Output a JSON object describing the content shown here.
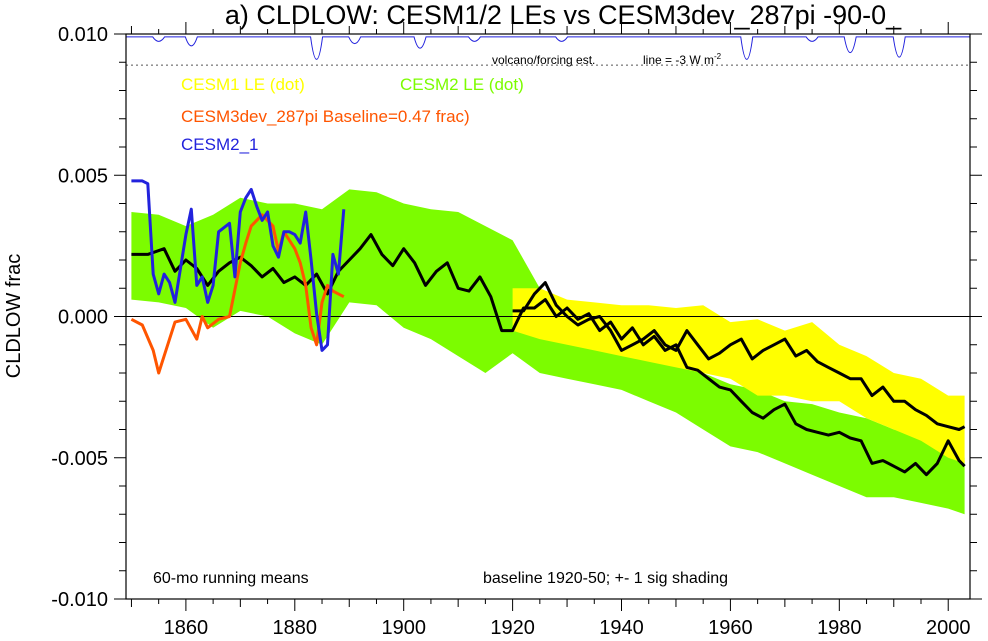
{
  "chart_data": {
    "type": "line",
    "title": "a) CLDLOW: CESM1/2 LEs vs CESM3dev_287pi -90-0_",
    "ylabel": "CLDLOW frac",
    "xlabel": "",
    "xlim": [
      1849,
      2004
    ],
    "ylim": [
      -0.01,
      0.01
    ],
    "x_ticks": [
      1860,
      1880,
      1900,
      1920,
      1940,
      1960,
      1980,
      2000
    ],
    "y_ticks": [
      0.01,
      0.005,
      0.0,
      -0.005,
      -0.01
    ],
    "y_tick_labels": [
      "0.010",
      "0.005",
      "0.000",
      "-0.005",
      "-0.010"
    ],
    "zero_line": 0,
    "legend": [
      {
        "label": "CESM1 LE (dot)",
        "color": "#ffff00"
      },
      {
        "label": "CESM2 LE (dot)",
        "color": "#7cfc00"
      },
      {
        "label": "CESM3dev_287pi Baseline=0.47 frac)",
        "color": "#ff5500"
      },
      {
        "label": "CESM2_1",
        "color": "#2222dd"
      }
    ],
    "annotations": {
      "volcano": "volcano/forcing est.",
      "line_scale": "line = -3 W m",
      "running_mean": "60-mo running means",
      "baseline": "baseline 1920-50; +- 1 sig shading"
    },
    "volcano_baseline_y": 0.0089,
    "volcano_top_y": 0.0099,
    "volcano_dips": [
      {
        "x": 1855,
        "depth": 0.0002
      },
      {
        "x": 1861,
        "depth": 0.0004
      },
      {
        "x": 1884,
        "depth": 0.001
      },
      {
        "x": 1891,
        "depth": 0.0003
      },
      {
        "x": 1903,
        "depth": 0.0005
      },
      {
        "x": 1913,
        "depth": 0.0002
      },
      {
        "x": 1929,
        "depth": 0.0002
      },
      {
        "x": 1963,
        "depth": 0.001
      },
      {
        "x": 1975,
        "depth": 0.0002
      },
      {
        "x": 1982,
        "depth": 0.0007
      },
      {
        "x": 1991,
        "depth": 0.0009
      }
    ],
    "series": [
      {
        "name": "CESM2 LE (dot)",
        "kind": "band",
        "color": "#7cfc00",
        "x": [
          1850,
          1855,
          1860,
          1865,
          1870,
          1875,
          1880,
          1885,
          1890,
          1895,
          1900,
          1905,
          1910,
          1915,
          1920,
          1925,
          1930,
          1935,
          1940,
          1945,
          1950,
          1955,
          1960,
          1965,
          1970,
          1975,
          1980,
          1985,
          1990,
          1995,
          2000,
          2003
        ],
        "upper": [
          0.0037,
          0.0036,
          0.0032,
          0.0036,
          0.0042,
          0.004,
          0.004,
          0.0038,
          0.0045,
          0.0044,
          0.004,
          0.0038,
          0.0037,
          0.0032,
          0.0027,
          0.001,
          0.0005,
          0.0,
          -0.0008,
          -0.0012,
          -0.0015,
          -0.002,
          -0.0024,
          -0.0026,
          -0.003,
          -0.0031,
          -0.0034,
          -0.0036,
          -0.004,
          -0.0042,
          -0.0046,
          -0.005
        ],
        "lower": [
          0.0006,
          0.0005,
          0.0003,
          -0.0004,
          0.0002,
          0.0,
          -0.0006,
          -0.001,
          0.0005,
          0.0004,
          -0.0004,
          -0.0008,
          -0.0014,
          -0.002,
          -0.0013,
          -0.002,
          -0.0022,
          -0.0024,
          -0.0026,
          -0.003,
          -0.0034,
          -0.004,
          -0.0046,
          -0.0048,
          -0.0052,
          -0.0056,
          -0.006,
          -0.0064,
          -0.0064,
          -0.0066,
          -0.0068,
          -0.007
        ]
      },
      {
        "name": "CESM1 LE (dot)",
        "kind": "band",
        "color": "#ffff00",
        "x": [
          1920,
          1925,
          1930,
          1935,
          1940,
          1945,
          1950,
          1955,
          1960,
          1965,
          1970,
          1975,
          1980,
          1985,
          1990,
          1995,
          2000,
          2003
        ],
        "upper": [
          0.001,
          0.001,
          0.0006,
          0.0005,
          0.0004,
          0.0004,
          0.0003,
          0.0004,
          -0.0002,
          -0.0001,
          -0.0005,
          -0.0002,
          -0.001,
          -0.0014,
          -0.002,
          -0.0022,
          -0.0028,
          -0.0028
        ],
        "lower": [
          -0.0005,
          -0.0008,
          -0.001,
          -0.0012,
          -0.0014,
          -0.0016,
          -0.0018,
          -0.002,
          -0.0022,
          -0.0028,
          -0.0028,
          -0.003,
          -0.003,
          -0.0036,
          -0.004,
          -0.0044,
          -0.005,
          -0.0052
        ]
      },
      {
        "name": "CESM2 LE (dot)",
        "kind": "mean",
        "color": "#000000",
        "x": [
          1850,
          1853,
          1856,
          1858,
          1860,
          1862,
          1864,
          1866,
          1868,
          1870,
          1872,
          1874,
          1876,
          1878,
          1880,
          1882,
          1884,
          1886,
          1888,
          1890,
          1892,
          1894,
          1896,
          1898,
          1900,
          1902,
          1904,
          1906,
          1908,
          1910,
          1912,
          1914,
          1916,
          1918,
          1920,
          1922,
          1924,
          1926,
          1928,
          1930,
          1932,
          1934,
          1936,
          1938,
          1940,
          1942,
          1944,
          1946,
          1948,
          1950,
          1952,
          1954,
          1956,
          1958,
          1960,
          1962,
          1964,
          1966,
          1968,
          1970,
          1972,
          1974,
          1976,
          1978,
          1980,
          1982,
          1984,
          1986,
          1988,
          1990,
          1992,
          1994,
          1996,
          1998,
          2000,
          2002,
          2003
        ],
        "values": [
          0.0022,
          0.0022,
          0.0024,
          0.0016,
          0.002,
          0.0017,
          0.0011,
          0.0016,
          0.0019,
          0.0021,
          0.0018,
          0.0014,
          0.0017,
          0.0012,
          0.0014,
          0.0011,
          0.0015,
          0.0008,
          0.0016,
          0.002,
          0.0024,
          0.0029,
          0.0022,
          0.0018,
          0.0024,
          0.0019,
          0.0011,
          0.0016,
          0.0019,
          0.001,
          0.0009,
          0.0014,
          0.0007,
          -0.0005,
          -0.0005,
          0.0003,
          0.0003,
          0.0006,
          0.0,
          0.0003,
          -0.0001,
          0.0001,
          -0.0005,
          -0.0002,
          -0.0008,
          -0.0004,
          -0.001,
          -0.0007,
          -0.0012,
          -0.001,
          -0.0018,
          -0.0019,
          -0.0022,
          -0.0025,
          -0.0026,
          -0.003,
          -0.0034,
          -0.0036,
          -0.0033,
          -0.0031,
          -0.0038,
          -0.004,
          -0.0041,
          -0.0042,
          -0.0041,
          -0.0043,
          -0.0044,
          -0.0052,
          -0.0051,
          -0.0053,
          -0.0055,
          -0.0052,
          -0.0056,
          -0.0052,
          -0.0044,
          -0.0051,
          -0.0053
        ]
      },
      {
        "name": "CESM1 LE (dot)",
        "kind": "mean",
        "color": "#000000",
        "x": [
          1920,
          1922,
          1924,
          1926,
          1928,
          1930,
          1932,
          1934,
          1936,
          1938,
          1940,
          1942,
          1944,
          1946,
          1948,
          1950,
          1952,
          1954,
          1956,
          1958,
          1960,
          1962,
          1964,
          1966,
          1968,
          1970,
          1972,
          1974,
          1976,
          1978,
          1980,
          1982,
          1984,
          1986,
          1988,
          1990,
          1992,
          1994,
          1996,
          1998,
          2000,
          2002,
          2003
        ],
        "values": [
          0.0002,
          0.0002,
          0.0008,
          0.0012,
          0.0004,
          0.0,
          -0.0003,
          -0.0001,
          0.0,
          -0.0005,
          -0.0012,
          -0.001,
          -0.0008,
          -0.0005,
          -0.001,
          -0.0012,
          -0.0005,
          -0.001,
          -0.0015,
          -0.0013,
          -0.001,
          -0.0008,
          -0.0015,
          -0.0012,
          -0.001,
          -0.0008,
          -0.0014,
          -0.0012,
          -0.0016,
          -0.0018,
          -0.002,
          -0.0022,
          -0.0022,
          -0.0028,
          -0.0025,
          -0.003,
          -0.003,
          -0.0033,
          -0.0035,
          -0.0038,
          -0.0039,
          -0.004,
          -0.0039
        ]
      },
      {
        "name": "CESM3dev_287pi Baseline=0.47 frac)",
        "kind": "line",
        "color": "#ff5500",
        "x": [
          1850,
          1852,
          1854,
          1855,
          1856,
          1858,
          1860,
          1862,
          1863,
          1864,
          1866,
          1868,
          1870,
          1871,
          1872,
          1874,
          1876,
          1877,
          1878,
          1880,
          1881,
          1882,
          1883,
          1884,
          1885,
          1886,
          1887,
          1888,
          1889
        ],
        "values": [
          -0.0001,
          -0.0003,
          -0.0012,
          -0.002,
          -0.0014,
          -0.0002,
          -0.0001,
          -0.0008,
          0.0,
          -0.0004,
          -0.0001,
          0.0,
          0.0019,
          0.0026,
          0.0032,
          0.0036,
          0.0032,
          0.0023,
          0.003,
          0.0024,
          0.0019,
          0.0011,
          -0.0004,
          -0.001,
          0.0005,
          0.0011,
          0.0009,
          0.0008,
          0.0007
        ]
      },
      {
        "name": "CESM2_1",
        "kind": "line",
        "color": "#2222dd",
        "x": [
          1850,
          1852,
          1853,
          1854,
          1855,
          1856,
          1857,
          1858,
          1860,
          1861,
          1862,
          1863,
          1864,
          1865,
          1866,
          1868,
          1869,
          1870,
          1871,
          1872,
          1873,
          1874,
          1875,
          1876,
          1877,
          1878,
          1879,
          1880,
          1881,
          1882,
          1883,
          1884,
          1885,
          1886,
          1887,
          1888,
          1889
        ],
        "values": [
          0.0048,
          0.0048,
          0.0047,
          0.0015,
          0.0008,
          0.0015,
          0.0012,
          0.0005,
          0.0029,
          0.0038,
          0.0011,
          0.0014,
          0.0005,
          0.0011,
          0.003,
          0.0033,
          0.0014,
          0.0037,
          0.0042,
          0.0045,
          0.0039,
          0.0034,
          0.0037,
          0.0025,
          0.0021,
          0.003,
          0.003,
          0.0029,
          0.0026,
          0.0037,
          0.002,
          0.0001,
          -0.0012,
          -0.001,
          0.0022,
          0.0015,
          0.0038
        ]
      }
    ]
  }
}
